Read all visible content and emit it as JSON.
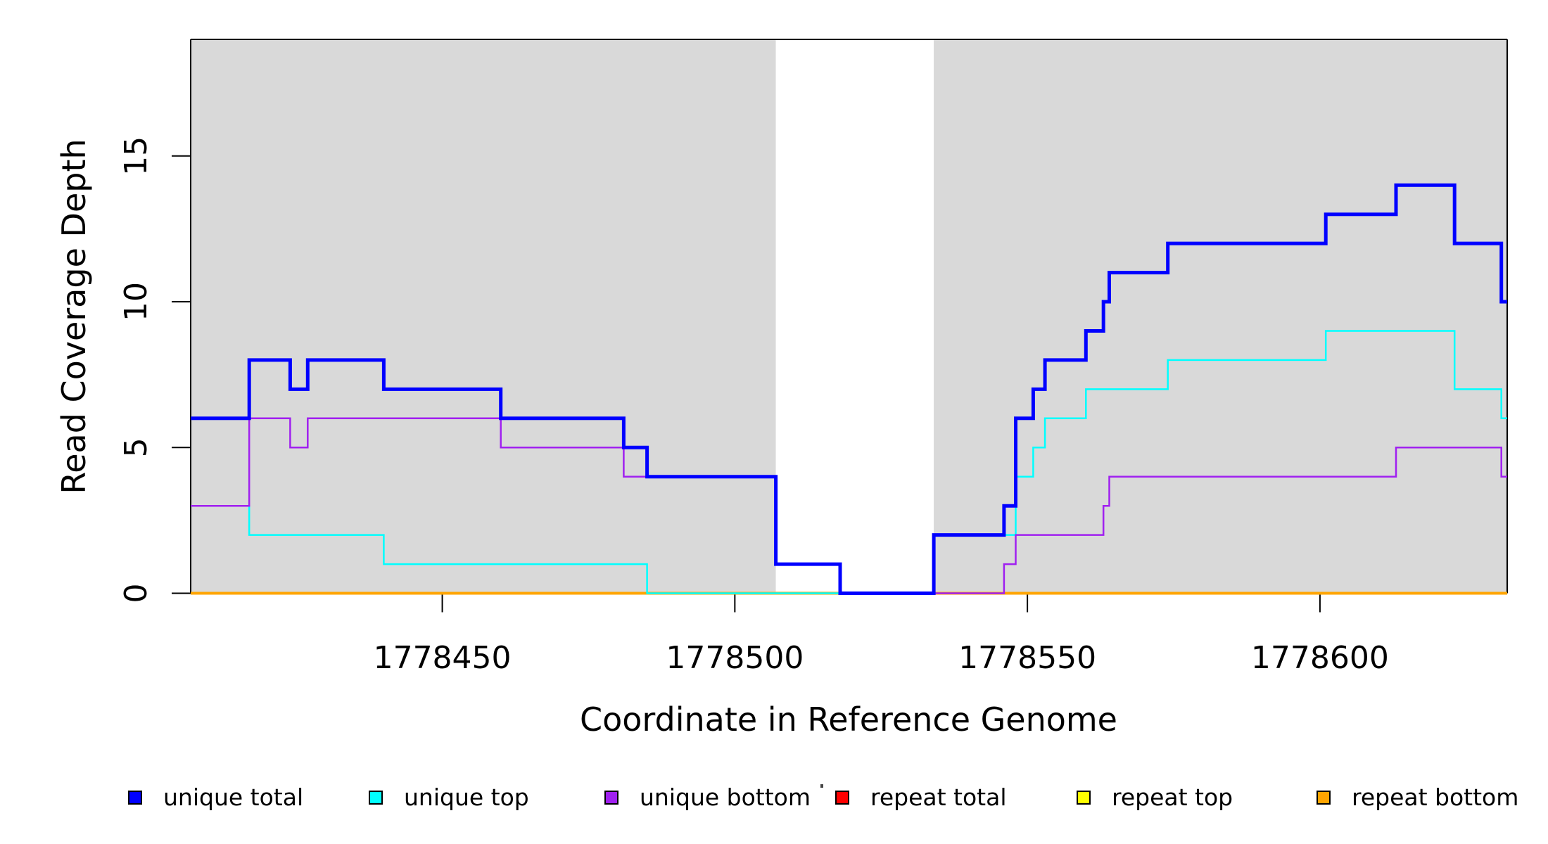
{
  "chart_data": {
    "type": "line",
    "subtype": "step-coverage",
    "title": "",
    "xlabel": "Coordinate in Reference Genome",
    "ylabel": "Read Coverage Depth",
    "x_domain": [
      1778407,
      1778632
    ],
    "y_domain": [
      0,
      19
    ],
    "x_ticks": [
      1778450,
      1778500,
      1778550,
      1778600
    ],
    "y_ticks": [
      0,
      5,
      10,
      15
    ],
    "grid": false,
    "legend_position": "bottom",
    "axis_color": "#000000",
    "background_regions": [
      {
        "name": "masked-region-left",
        "x_start": 1778407,
        "x_end": 1778507,
        "color": "#D9D9D9"
      },
      {
        "name": "masked-region-right",
        "x_start": 1778534,
        "x_end": 1778632,
        "color": "#D9D9D9"
      }
    ],
    "x_end": 1778632,
    "series": [
      {
        "name": "repeat total",
        "color": "#FF0000",
        "width": 4,
        "steps": [
          [
            1778407,
            0
          ]
        ]
      },
      {
        "name": "repeat top",
        "color": "#FFFF00",
        "width": 4,
        "steps": [
          [
            1778407,
            0
          ]
        ]
      },
      {
        "name": "repeat bottom",
        "color": "#FFA500",
        "width": 4,
        "steps": [
          [
            1778407,
            0
          ]
        ]
      },
      {
        "name": "unique top",
        "color": "#00FFFF",
        "width": 2.5,
        "steps": [
          [
            1778407,
            3
          ],
          [
            1778417,
            2
          ],
          [
            1778440,
            1
          ],
          [
            1778485,
            0
          ],
          [
            1778534,
            2
          ],
          [
            1778548,
            4
          ],
          [
            1778551,
            5
          ],
          [
            1778553,
            6
          ],
          [
            1778560,
            7
          ],
          [
            1778574,
            8
          ],
          [
            1778601,
            9
          ],
          [
            1778623,
            7
          ],
          [
            1778631,
            6
          ]
        ]
      },
      {
        "name": "unique bottom",
        "color": "#A020F0",
        "width": 2.5,
        "steps": [
          [
            1778407,
            3
          ],
          [
            1778417,
            6
          ],
          [
            1778424,
            5
          ],
          [
            1778427,
            6
          ],
          [
            1778460,
            5
          ],
          [
            1778481,
            4
          ],
          [
            1778507,
            1
          ],
          [
            1778518,
            0
          ],
          [
            1778546,
            1
          ],
          [
            1778548,
            2
          ],
          [
            1778563,
            3
          ],
          [
            1778564,
            4
          ],
          [
            1778613,
            5
          ],
          [
            1778631,
            4
          ]
        ]
      },
      {
        "name": "unique total",
        "color": "#0000FF",
        "width": 5,
        "steps": [
          [
            1778407,
            6
          ],
          [
            1778417,
            8
          ],
          [
            1778424,
            7
          ],
          [
            1778427,
            8
          ],
          [
            1778440,
            7
          ],
          [
            1778460,
            6
          ],
          [
            1778481,
            5
          ],
          [
            1778485,
            4
          ],
          [
            1778507,
            1
          ],
          [
            1778518,
            0
          ],
          [
            1778534,
            2
          ],
          [
            1778546,
            3
          ],
          [
            1778548,
            6
          ],
          [
            1778551,
            7
          ],
          [
            1778553,
            8
          ],
          [
            1778560,
            9
          ],
          [
            1778563,
            10
          ],
          [
            1778564,
            11
          ],
          [
            1778574,
            12
          ],
          [
            1778601,
            13
          ],
          [
            1778613,
            14
          ],
          [
            1778623,
            12
          ],
          [
            1778631,
            10
          ]
        ]
      }
    ]
  },
  "legend": {
    "items": [
      {
        "label": "unique total",
        "color": "#0000FF"
      },
      {
        "label": "unique top",
        "color": "#00FFFF"
      },
      {
        "label": "unique bottom",
        "color": "#A020F0"
      },
      {
        "label": "repeat total",
        "color": "#FF0000"
      },
      {
        "label": "repeat top",
        "color": "#FFFF00"
      },
      {
        "label": "repeat bottom",
        "color": "#FFA500"
      }
    ]
  }
}
